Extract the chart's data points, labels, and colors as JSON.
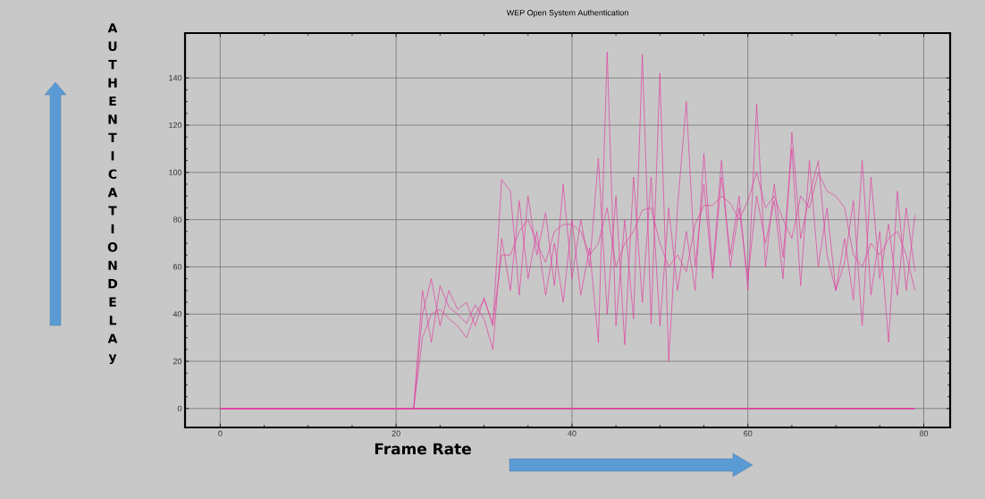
{
  "chart_data": {
    "type": "line",
    "title": "WEP Open System Authentication",
    "xlabel": "Frame Rate",
    "ylabel": "AUTHENTICATIONDELAy",
    "xlim": [
      -4,
      83
    ],
    "ylim": [
      -8,
      159
    ],
    "xticks": [
      0,
      20,
      40,
      60,
      80
    ],
    "yticks": [
      0,
      20,
      40,
      60,
      80,
      100,
      120,
      140
    ],
    "grid": true,
    "series": [
      {
        "color": "#e040a0",
        "x": [
          0,
          22,
          23,
          24,
          25,
          26,
          27,
          28,
          29,
          30,
          31,
          32,
          33,
          34,
          35,
          36,
          37,
          38,
          39,
          40,
          41,
          42,
          43,
          44,
          45,
          46,
          47,
          48,
          49,
          50,
          51,
          52,
          53,
          54,
          55,
          56,
          57,
          58,
          59,
          60,
          61,
          62,
          63,
          64,
          65,
          66,
          67,
          68,
          69,
          70,
          71,
          72,
          73,
          74,
          75,
          76,
          77,
          78,
          79
        ],
        "values": [
          0,
          0,
          50,
          28,
          52,
          43,
          40,
          36,
          44,
          38,
          25,
          72,
          50,
          88,
          55,
          75,
          48,
          70,
          45,
          80,
          48,
          68,
          28,
          151,
          35,
          80,
          38,
          150,
          36,
          142,
          20,
          85,
          130,
          60,
          95,
          55,
          98,
          65,
          90,
          50,
          129,
          60,
          95,
          64,
          110,
          52,
          105,
          60,
          85,
          50,
          72,
          46,
          105,
          48,
          75,
          28,
          92,
          50,
          82
        ]
      },
      {
        "color": "#e040a0",
        "x": [
          0,
          22,
          23,
          24,
          25,
          26,
          27,
          28,
          29,
          30,
          31,
          32,
          33,
          34,
          35,
          36,
          37,
          38,
          39,
          40,
          41,
          42,
          43,
          44,
          45,
          46,
          47,
          48,
          49,
          50,
          51,
          52,
          53,
          54,
          55,
          56,
          57,
          58,
          59,
          60,
          61,
          62,
          63,
          64,
          65,
          66,
          67,
          68,
          69,
          70,
          71,
          72,
          73,
          74,
          75,
          76,
          77,
          78,
          79
        ],
        "values": [
          0,
          0,
          40,
          55,
          35,
          50,
          42,
          45,
          35,
          47,
          35,
          97,
          92,
          48,
          90,
          65,
          83,
          52,
          95,
          55,
          80,
          60,
          106,
          40,
          90,
          27,
          98,
          45,
          98,
          35,
          85,
          50,
          75,
          50,
          108,
          58,
          105,
          60,
          85,
          55,
          90,
          70,
          88,
          55,
          117,
          72,
          90,
          105,
          65,
          50,
          62,
          88,
          35,
          98,
          55,
          78,
          48,
          85,
          58
        ]
      },
      {
        "color": "#e040a0",
        "x": [
          0,
          22,
          23,
          24,
          25,
          26,
          27,
          28,
          29,
          30,
          31,
          32,
          33,
          34,
          35,
          36,
          37,
          38,
          39,
          40,
          41,
          42,
          43,
          44,
          45,
          46,
          47,
          48,
          49,
          50,
          51,
          52,
          53,
          54,
          55,
          56,
          57,
          58,
          59,
          60,
          61,
          62,
          63,
          64,
          65,
          66,
          67,
          68,
          69,
          70,
          71,
          72,
          73,
          74,
          75,
          76,
          77,
          78,
          79
        ],
        "values": [
          0,
          0,
          30,
          40,
          42,
          38,
          35,
          30,
          40,
          46,
          36,
          65,
          65,
          75,
          80,
          70,
          62,
          75,
          78,
          78,
          75,
          65,
          70,
          85,
          60,
          70,
          75,
          84,
          85,
          70,
          60,
          65,
          58,
          78,
          86,
          86,
          90,
          87,
          80,
          88,
          100,
          85,
          90,
          80,
          72,
          90,
          85,
          100,
          92,
          90,
          85,
          65,
          60,
          70,
          65,
          72,
          75,
          65,
          50
        ]
      },
      {
        "color": "#e040a0",
        "x": [
          0,
          79
        ],
        "values": [
          0,
          0
        ]
      }
    ]
  }
}
